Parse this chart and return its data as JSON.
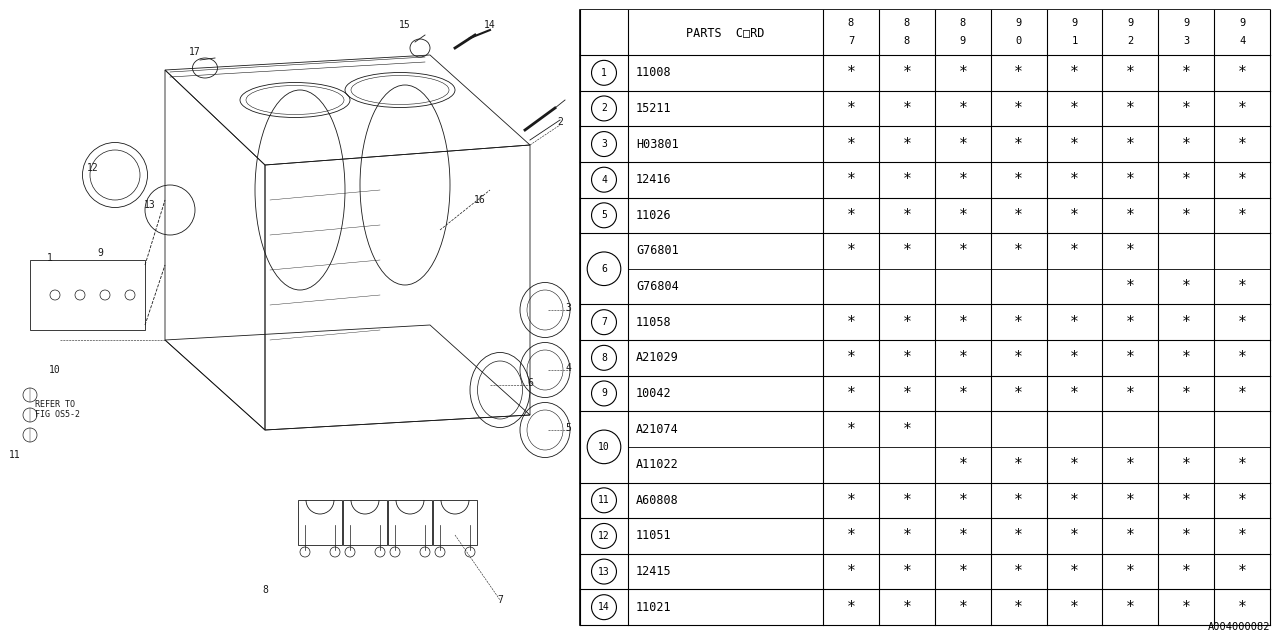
{
  "bg_color": "#ffffff",
  "line_color": "#000000",
  "col_headers": [
    "8\n7",
    "8\n8",
    "8\n9",
    "9\n0",
    "9\n1",
    "9\n2",
    "9\n3",
    "9\n4"
  ],
  "parts_col_header": "PARTS C□RD",
  "rows": [
    {
      "num": "1",
      "code": "11008",
      "marks": [
        1,
        1,
        1,
        1,
        1,
        1,
        1,
        1
      ],
      "double": false
    },
    {
      "num": "2",
      "code": "15211",
      "marks": [
        1,
        1,
        1,
        1,
        1,
        1,
        1,
        1
      ],
      "double": false
    },
    {
      "num": "3",
      "code": "H03801",
      "marks": [
        1,
        1,
        1,
        1,
        1,
        1,
        1,
        1
      ],
      "double": false
    },
    {
      "num": "4",
      "code": "12416",
      "marks": [
        1,
        1,
        1,
        1,
        1,
        1,
        1,
        1
      ],
      "double": false
    },
    {
      "num": "5",
      "code": "11026",
      "marks": [
        1,
        1,
        1,
        1,
        1,
        1,
        1,
        1
      ],
      "double": false
    },
    {
      "num": "6",
      "code": "G76801",
      "marks": [
        1,
        1,
        1,
        1,
        1,
        1,
        0,
        0
      ],
      "double": true,
      "code2": "G76804",
      "marks2": [
        0,
        0,
        0,
        0,
        0,
        1,
        1,
        1
      ]
    },
    {
      "num": "7",
      "code": "11058",
      "marks": [
        1,
        1,
        1,
        1,
        1,
        1,
        1,
        1
      ],
      "double": false
    },
    {
      "num": "8",
      "code": "A21029",
      "marks": [
        1,
        1,
        1,
        1,
        1,
        1,
        1,
        1
      ],
      "double": false
    },
    {
      "num": "9",
      "code": "10042",
      "marks": [
        1,
        1,
        1,
        1,
        1,
        1,
        1,
        1
      ],
      "double": false
    },
    {
      "num": "10",
      "code": "A21074",
      "marks": [
        1,
        1,
        0,
        0,
        0,
        0,
        0,
        0
      ],
      "double": true,
      "code2": "A11022",
      "marks2": [
        0,
        0,
        1,
        1,
        1,
        1,
        1,
        1
      ]
    },
    {
      "num": "11",
      "code": "A60808",
      "marks": [
        1,
        1,
        1,
        1,
        1,
        1,
        1,
        1
      ],
      "double": false
    },
    {
      "num": "12",
      "code": "11051",
      "marks": [
        1,
        1,
        1,
        1,
        1,
        1,
        1,
        1
      ],
      "double": false
    },
    {
      "num": "13",
      "code": "12415",
      "marks": [
        1,
        1,
        1,
        1,
        1,
        1,
        1,
        1
      ],
      "double": false
    },
    {
      "num": "14",
      "code": "11021",
      "marks": [
        1,
        1,
        1,
        1,
        1,
        1,
        1,
        1
      ],
      "double": false
    }
  ],
  "footer": "A004000082",
  "mark_char": "*"
}
